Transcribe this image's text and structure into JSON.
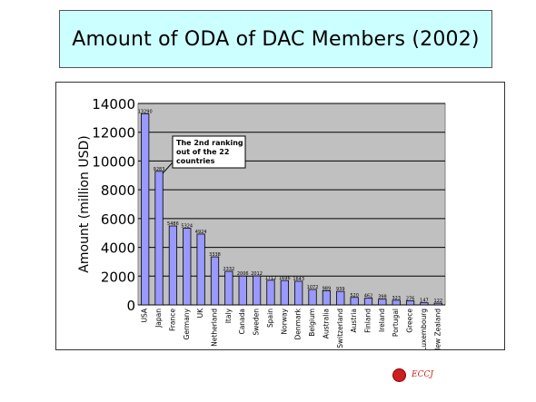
{
  "title": "Amount of ODA of DAC Members (2002)",
  "logo_text": "ECCJ",
  "chart_data": {
    "type": "bar",
    "title": "Amount of ODA of DAC Members (2002)",
    "xlabel": "",
    "ylabel": "Amount (million USD)",
    "ylim": [
      0,
      14000
    ],
    "yticks": [
      0,
      2000,
      4000,
      6000,
      8000,
      10000,
      12000,
      14000
    ],
    "grid": true,
    "categories": [
      "USA",
      "Japan",
      "France",
      "Germany",
      "UK",
      "Netherland",
      "Italy",
      "Canada",
      "Sweden",
      "Spain",
      "Norway",
      "Denmark",
      "Belgium",
      "Australia",
      "Switzerland",
      "Austria",
      "Finland",
      "Ireland",
      "Portugal",
      "Greece",
      "Luxembourg",
      "New Zealand"
    ],
    "values": [
      13290,
      9283,
      5486,
      5324,
      4924,
      3338,
      2332,
      2006,
      2012,
      1712,
      1696,
      1643,
      1072,
      989,
      939,
      520,
      462,
      398,
      323,
      276,
      147,
      122
    ],
    "data_labels": [
      "13290",
      "9283",
      "5486",
      "5324",
      "4924",
      "3338",
      "2332",
      "2006",
      "2012",
      "1712",
      "1696",
      "1643",
      "1072",
      "989",
      "939",
      "520",
      "462",
      "398",
      "323",
      "276",
      "147",
      "122"
    ],
    "bar_color": "#9999ff",
    "plot_background": "#c0c0c0",
    "annotation": {
      "lines": [
        "The 2nd ranking",
        "out of the 22",
        "countries"
      ],
      "target_category": "Japan"
    }
  }
}
